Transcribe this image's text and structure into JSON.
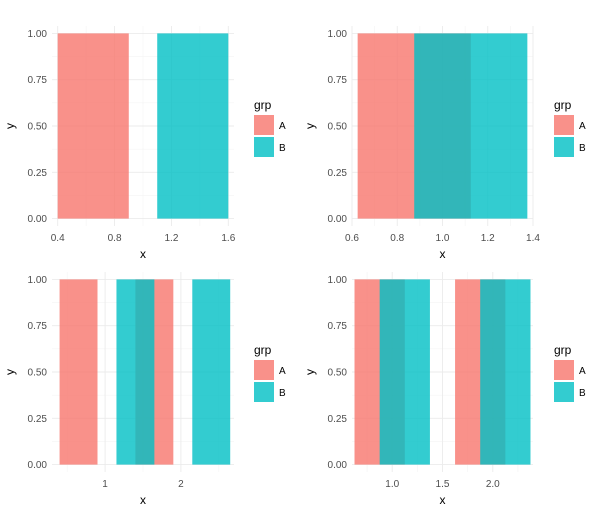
{
  "colors": {
    "A": "#f8766d",
    "B": "#00bfc4",
    "grid_major": "#ebebeb",
    "grid_minor": "#f4f4f4"
  },
  "legend": {
    "title": "grp",
    "entries": [
      "A",
      "B"
    ]
  },
  "chart_data": [
    {
      "type": "bar",
      "xlabel": "x",
      "ylabel": "y",
      "xlim": [
        0.36,
        1.64
      ],
      "ylim": [
        -0.04,
        1.04
      ],
      "xticks": [
        0.4,
        0.8,
        1.2,
        1.6
      ],
      "xtick_labels": [
        "0.4",
        "0.8",
        "1.2",
        "1.6"
      ],
      "yticks": [
        0,
        0.25,
        0.5,
        0.75,
        1
      ],
      "ytick_labels": [
        "0.00",
        "0.25",
        "0.50",
        "0.75",
        "1.00"
      ],
      "grid": true,
      "legend_position": "right",
      "series": [
        {
          "name": "A",
          "bars": [
            {
              "xmin": 0.4,
              "xmax": 0.9,
              "ymin": 0,
              "ymax": 1
            }
          ]
        },
        {
          "name": "B",
          "bars": [
            {
              "xmin": 1.1,
              "xmax": 1.6,
              "ymin": 0,
              "ymax": 1
            }
          ]
        }
      ]
    },
    {
      "type": "bar",
      "xlabel": "x",
      "ylabel": "y",
      "xlim": [
        0.6,
        1.4
      ],
      "ylim": [
        -0.04,
        1.04
      ],
      "xticks": [
        0.6,
        0.8,
        1.0,
        1.2,
        1.4
      ],
      "xtick_labels": [
        "0.6",
        "0.8",
        "1.0",
        "1.2",
        "1.4"
      ],
      "yticks": [
        0,
        0.25,
        0.5,
        0.75,
        1
      ],
      "ytick_labels": [
        "0.00",
        "0.25",
        "0.50",
        "0.75",
        "1.00"
      ],
      "grid": true,
      "legend_position": "right",
      "series": [
        {
          "name": "A",
          "bars": [
            {
              "xmin": 0.625,
              "xmax": 1.125,
              "ymin": 0,
              "ymax": 1
            }
          ]
        },
        {
          "name": "B",
          "bars": [
            {
              "xmin": 0.875,
              "xmax": 1.375,
              "ymin": 0,
              "ymax": 1
            }
          ]
        }
      ]
    },
    {
      "type": "bar",
      "xlabel": "x",
      "ylabel": "y",
      "xlim": [
        0.3,
        2.7
      ],
      "ylim": [
        -0.04,
        1.04
      ],
      "xticks": [
        1,
        2
      ],
      "xtick_labels": [
        "1",
        "2"
      ],
      "yticks": [
        0,
        0.25,
        0.5,
        0.75,
        1
      ],
      "ytick_labels": [
        "0.00",
        "0.25",
        "0.50",
        "0.75",
        "1.00"
      ],
      "grid": true,
      "legend_position": "right",
      "series": [
        {
          "name": "A",
          "bars": [
            {
              "xmin": 0.4,
              "xmax": 0.9,
              "ymin": 0,
              "ymax": 1
            },
            {
              "xmin": 1.4,
              "xmax": 1.9,
              "ymin": 0,
              "ymax": 1
            }
          ]
        },
        {
          "name": "B",
          "bars": [
            {
              "xmin": 1.15,
              "xmax": 1.65,
              "ymin": 0,
              "ymax": 1
            },
            {
              "xmin": 2.15,
              "xmax": 2.65,
              "ymin": 0,
              "ymax": 1
            }
          ]
        }
      ]
    },
    {
      "type": "bar",
      "xlabel": "x",
      "ylabel": "y",
      "xlim": [
        0.6,
        2.4
      ],
      "ylim": [
        -0.04,
        1.04
      ],
      "xticks": [
        1.0,
        1.5,
        2.0
      ],
      "xtick_labels": [
        "1.0",
        "1.5",
        "2.0"
      ],
      "yticks": [
        0,
        0.25,
        0.5,
        0.75,
        1
      ],
      "ytick_labels": [
        "0.00",
        "0.25",
        "0.50",
        "0.75",
        "1.00"
      ],
      "grid": true,
      "legend_position": "right",
      "series": [
        {
          "name": "A",
          "bars": [
            {
              "xmin": 0.625,
              "xmax": 1.125,
              "ymin": 0,
              "ymax": 1
            },
            {
              "xmin": 1.625,
              "xmax": 2.125,
              "ymin": 0,
              "ymax": 1
            }
          ]
        },
        {
          "name": "B",
          "bars": [
            {
              "xmin": 0.875,
              "xmax": 1.375,
              "ymin": 0,
              "ymax": 1
            },
            {
              "xmin": 1.875,
              "xmax": 2.375,
              "ymin": 0,
              "ymax": 1
            }
          ]
        }
      ]
    }
  ]
}
